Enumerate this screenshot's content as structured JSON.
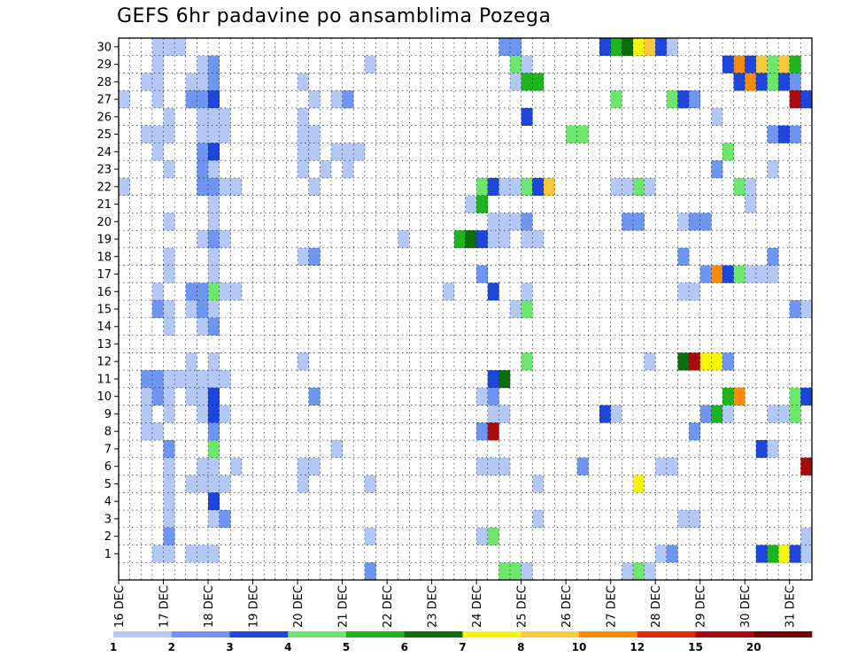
{
  "chart_data": {
    "type": "heatmap",
    "title": "GEFS 6hr padavine po ansamblima Pozega",
    "x_tick_labels": [
      "16 DEC",
      "17 DEC",
      "18 DEC",
      "19 DEC",
      "20 DEC",
      "21 DEC",
      "22 DEC",
      "23 DEC",
      "24 DEC",
      "25 DEC",
      "26 DEC",
      "27 DEC",
      "28 DEC",
      "29 DEC",
      "30 DEC",
      "31 DEC"
    ],
    "y_tick_labels": [
      "1",
      "2",
      "3",
      "4",
      "5",
      "6",
      "7",
      "8",
      "9",
      "10",
      "11",
      "12",
      "13",
      "14",
      "15",
      "16",
      "17",
      "18",
      "19",
      "20",
      "21",
      "22",
      "23",
      "24",
      "25",
      "26",
      "27",
      "28",
      "29",
      "30"
    ],
    "x_range": [
      0,
      61
    ],
    "y_range": [
      0,
      30
    ],
    "grid": true,
    "legend_placement": "bottom",
    "legend": {
      "colors": [
        "#b4c8f5",
        "#6e96f0",
        "#1e46dc",
        "#6ee66e",
        "#1eb41e",
        "#0a6e0a",
        "#f5f50a",
        "#fac83c",
        "#fa8c0a",
        "#e6280a",
        "#aa0a0a",
        "#780505"
      ],
      "labels": [
        "1",
        "2",
        "3",
        "4",
        "5",
        "6",
        "7",
        "8",
        "10",
        "12",
        "15",
        "20"
      ]
    },
    "cells": [
      [
        3,
        30,
        1
      ],
      [
        4,
        30,
        1
      ],
      [
        5,
        30,
        1
      ],
      [
        34,
        30,
        2
      ],
      [
        35,
        30,
        2
      ],
      [
        43,
        30,
        3
      ],
      [
        44,
        30,
        5
      ],
      [
        45,
        30,
        6
      ],
      [
        46,
        30,
        7
      ],
      [
        47,
        30,
        8
      ],
      [
        48,
        30,
        3
      ],
      [
        49,
        30,
        1
      ],
      [
        3,
        29,
        1
      ],
      [
        7,
        29,
        1
      ],
      [
        8,
        29,
        2
      ],
      [
        22,
        29,
        1
      ],
      [
        35,
        29,
        4
      ],
      [
        36,
        29,
        1
      ],
      [
        54,
        29,
        3
      ],
      [
        55,
        29,
        9
      ],
      [
        56,
        29,
        3
      ],
      [
        57,
        29,
        8
      ],
      [
        58,
        29,
        4
      ],
      [
        59,
        29,
        8
      ],
      [
        60,
        29,
        5
      ],
      [
        2,
        28,
        1
      ],
      [
        3,
        28,
        1
      ],
      [
        6,
        28,
        1
      ],
      [
        7,
        28,
        1
      ],
      [
        8,
        28,
        2
      ],
      [
        16,
        28,
        1
      ],
      [
        35,
        28,
        1
      ],
      [
        36,
        28,
        5
      ],
      [
        37,
        28,
        5
      ],
      [
        55,
        28,
        3
      ],
      [
        56,
        28,
        9
      ],
      [
        57,
        28,
        3
      ],
      [
        58,
        28,
        4
      ],
      [
        59,
        28,
        3
      ],
      [
        60,
        28,
        2
      ],
      [
        0,
        27,
        1
      ],
      [
        3,
        27,
        1
      ],
      [
        6,
        27,
        2
      ],
      [
        7,
        27,
        2
      ],
      [
        8,
        27,
        3
      ],
      [
        17,
        27,
        1
      ],
      [
        19,
        27,
        1
      ],
      [
        20,
        27,
        2
      ],
      [
        44,
        27,
        4
      ],
      [
        49,
        27,
        4
      ],
      [
        50,
        27,
        3
      ],
      [
        51,
        27,
        2
      ],
      [
        60,
        27,
        11
      ],
      [
        61,
        27,
        3
      ],
      [
        4,
        26,
        1
      ],
      [
        7,
        26,
        1
      ],
      [
        8,
        26,
        1
      ],
      [
        9,
        26,
        1
      ],
      [
        16,
        26,
        1
      ],
      [
        36,
        26,
        3
      ],
      [
        53,
        26,
        1
      ],
      [
        2,
        25,
        1
      ],
      [
        3,
        25,
        1
      ],
      [
        4,
        25,
        1
      ],
      [
        7,
        25,
        1
      ],
      [
        8,
        25,
        1
      ],
      [
        9,
        25,
        1
      ],
      [
        16,
        25,
        1
      ],
      [
        17,
        25,
        1
      ],
      [
        40,
        25,
        4
      ],
      [
        41,
        25,
        4
      ],
      [
        58,
        25,
        2
      ],
      [
        59,
        25,
        3
      ],
      [
        60,
        25,
        2
      ],
      [
        3,
        24,
        1
      ],
      [
        7,
        24,
        2
      ],
      [
        8,
        24,
        3
      ],
      [
        16,
        24,
        1
      ],
      [
        17,
        24,
        1
      ],
      [
        19,
        24,
        1
      ],
      [
        20,
        24,
        1
      ],
      [
        21,
        24,
        1
      ],
      [
        54,
        24,
        4
      ],
      [
        4,
        23,
        1
      ],
      [
        7,
        23,
        2
      ],
      [
        8,
        23,
        1
      ],
      [
        16,
        23,
        1
      ],
      [
        18,
        23,
        1
      ],
      [
        20,
        23,
        1
      ],
      [
        53,
        23,
        2
      ],
      [
        58,
        23,
        1
      ],
      [
        0,
        22,
        1
      ],
      [
        7,
        22,
        2
      ],
      [
        8,
        22,
        2
      ],
      [
        9,
        22,
        1
      ],
      [
        10,
        22,
        1
      ],
      [
        17,
        22,
        1
      ],
      [
        32,
        22,
        4
      ],
      [
        33,
        22,
        3
      ],
      [
        34,
        22,
        1
      ],
      [
        35,
        22,
        1
      ],
      [
        36,
        22,
        4
      ],
      [
        37,
        22,
        3
      ],
      [
        38,
        22,
        8
      ],
      [
        44,
        22,
        1
      ],
      [
        45,
        22,
        1
      ],
      [
        46,
        22,
        4
      ],
      [
        47,
        22,
        1
      ],
      [
        55,
        22,
        4
      ],
      [
        56,
        22,
        1
      ],
      [
        8,
        21,
        1
      ],
      [
        31,
        21,
        1
      ],
      [
        32,
        21,
        5
      ],
      [
        56,
        21,
        1
      ],
      [
        4,
        20,
        1
      ],
      [
        8,
        20,
        1
      ],
      [
        33,
        20,
        1
      ],
      [
        34,
        20,
        1
      ],
      [
        35,
        20,
        1
      ],
      [
        36,
        20,
        2
      ],
      [
        45,
        20,
        2
      ],
      [
        46,
        20,
        2
      ],
      [
        50,
        20,
        1
      ],
      [
        51,
        20,
        2
      ],
      [
        52,
        20,
        2
      ],
      [
        7,
        19,
        1
      ],
      [
        8,
        19,
        2
      ],
      [
        9,
        19,
        1
      ],
      [
        25,
        19,
        1
      ],
      [
        30,
        19,
        5
      ],
      [
        31,
        19,
        6
      ],
      [
        32,
        19,
        3
      ],
      [
        33,
        19,
        1
      ],
      [
        34,
        19,
        1
      ],
      [
        36,
        19,
        1
      ],
      [
        37,
        19,
        1
      ],
      [
        4,
        18,
        1
      ],
      [
        8,
        18,
        1
      ],
      [
        16,
        18,
        1
      ],
      [
        17,
        18,
        2
      ],
      [
        50,
        18,
        2
      ],
      [
        58,
        18,
        2
      ],
      [
        4,
        17,
        1
      ],
      [
        8,
        17,
        1
      ],
      [
        32,
        17,
        2
      ],
      [
        52,
        17,
        2
      ],
      [
        53,
        17,
        9
      ],
      [
        54,
        17,
        3
      ],
      [
        55,
        17,
        4
      ],
      [
        56,
        17,
        1
      ],
      [
        57,
        17,
        1
      ],
      [
        58,
        17,
        1
      ],
      [
        3,
        16,
        1
      ],
      [
        6,
        16,
        2
      ],
      [
        7,
        16,
        2
      ],
      [
        8,
        16,
        4
      ],
      [
        9,
        16,
        1
      ],
      [
        10,
        16,
        1
      ],
      [
        29,
        16,
        1
      ],
      [
        33,
        16,
        3
      ],
      [
        36,
        16,
        1
      ],
      [
        50,
        16,
        1
      ],
      [
        51,
        16,
        1
      ],
      [
        3,
        15,
        2
      ],
      [
        4,
        15,
        1
      ],
      [
        6,
        15,
        1
      ],
      [
        7,
        15,
        2
      ],
      [
        8,
        15,
        1
      ],
      [
        35,
        15,
        1
      ],
      [
        36,
        15,
        4
      ],
      [
        60,
        15,
        2
      ],
      [
        61,
        15,
        1
      ],
      [
        4,
        14,
        1
      ],
      [
        7,
        14,
        1
      ],
      [
        8,
        14,
        2
      ],
      [
        6,
        12,
        1
      ],
      [
        8,
        12,
        1
      ],
      [
        16,
        12,
        1
      ],
      [
        36,
        12,
        4
      ],
      [
        47,
        12,
        1
      ],
      [
        50,
        12,
        6
      ],
      [
        51,
        12,
        11
      ],
      [
        52,
        12,
        7
      ],
      [
        53,
        12,
        7
      ],
      [
        54,
        12,
        2
      ],
      [
        2,
        11,
        2
      ],
      [
        3,
        11,
        2
      ],
      [
        4,
        11,
        1
      ],
      [
        5,
        11,
        1
      ],
      [
        6,
        11,
        1
      ],
      [
        7,
        11,
        1
      ],
      [
        8,
        11,
        1
      ],
      [
        9,
        11,
        1
      ],
      [
        33,
        11,
        3
      ],
      [
        34,
        11,
        6
      ],
      [
        2,
        10,
        1
      ],
      [
        3,
        10,
        2
      ],
      [
        4,
        10,
        1
      ],
      [
        6,
        10,
        1
      ],
      [
        7,
        10,
        1
      ],
      [
        8,
        10,
        3
      ],
      [
        17,
        10,
        2
      ],
      [
        32,
        10,
        1
      ],
      [
        33,
        10,
        2
      ],
      [
        54,
        10,
        5
      ],
      [
        55,
        10,
        9
      ],
      [
        60,
        10,
        4
      ],
      [
        61,
        10,
        3
      ],
      [
        2,
        9,
        1
      ],
      [
        4,
        9,
        1
      ],
      [
        7,
        9,
        1
      ],
      [
        8,
        9,
        3
      ],
      [
        9,
        9,
        1
      ],
      [
        33,
        9,
        1
      ],
      [
        34,
        9,
        1
      ],
      [
        43,
        9,
        3
      ],
      [
        44,
        9,
        1
      ],
      [
        52,
        9,
        2
      ],
      [
        53,
        9,
        5
      ],
      [
        54,
        9,
        1
      ],
      [
        58,
        9,
        1
      ],
      [
        59,
        9,
        1
      ],
      [
        60,
        9,
        4
      ],
      [
        2,
        8,
        1
      ],
      [
        3,
        8,
        1
      ],
      [
        8,
        8,
        2
      ],
      [
        32,
        8,
        2
      ],
      [
        33,
        8,
        11
      ],
      [
        51,
        8,
        2
      ],
      [
        4,
        7,
        2
      ],
      [
        8,
        7,
        4
      ],
      [
        19,
        7,
        1
      ],
      [
        57,
        7,
        3
      ],
      [
        58,
        7,
        1
      ],
      [
        4,
        6,
        1
      ],
      [
        7,
        6,
        1
      ],
      [
        8,
        6,
        1
      ],
      [
        10,
        6,
        1
      ],
      [
        16,
        6,
        1
      ],
      [
        17,
        6,
        1
      ],
      [
        32,
        6,
        1
      ],
      [
        33,
        6,
        1
      ],
      [
        34,
        6,
        1
      ],
      [
        41,
        6,
        2
      ],
      [
        48,
        6,
        1
      ],
      [
        49,
        6,
        1
      ],
      [
        61,
        6,
        11
      ],
      [
        4,
        5,
        1
      ],
      [
        6,
        5,
        1
      ],
      [
        7,
        5,
        1
      ],
      [
        8,
        5,
        1
      ],
      [
        9,
        5,
        1
      ],
      [
        16,
        5,
        1
      ],
      [
        22,
        5,
        1
      ],
      [
        37,
        5,
        1
      ],
      [
        46,
        5,
        7
      ],
      [
        4,
        4,
        1
      ],
      [
        8,
        4,
        3
      ],
      [
        4,
        3,
        1
      ],
      [
        8,
        3,
        1
      ],
      [
        9,
        3,
        2
      ],
      [
        37,
        3,
        1
      ],
      [
        50,
        3,
        1
      ],
      [
        51,
        3,
        1
      ],
      [
        4,
        2,
        2
      ],
      [
        22,
        2,
        1
      ],
      [
        32,
        2,
        1
      ],
      [
        33,
        2,
        4
      ],
      [
        61,
        2,
        1
      ],
      [
        3,
        1,
        1
      ],
      [
        4,
        1,
        1
      ],
      [
        6,
        1,
        1
      ],
      [
        7,
        1,
        1
      ],
      [
        8,
        1,
        1
      ],
      [
        48,
        1,
        1
      ],
      [
        49,
        1,
        2
      ],
      [
        57,
        1,
        3
      ],
      [
        58,
        1,
        5
      ],
      [
        59,
        1,
        7
      ],
      [
        60,
        1,
        3
      ],
      [
        61,
        1,
        1
      ],
      [
        22,
        0,
        2
      ],
      [
        34,
        0,
        4
      ],
      [
        35,
        0,
        4
      ],
      [
        36,
        0,
        1
      ],
      [
        45,
        0,
        1
      ],
      [
        46,
        0,
        4
      ],
      [
        47,
        0,
        1
      ]
    ]
  }
}
